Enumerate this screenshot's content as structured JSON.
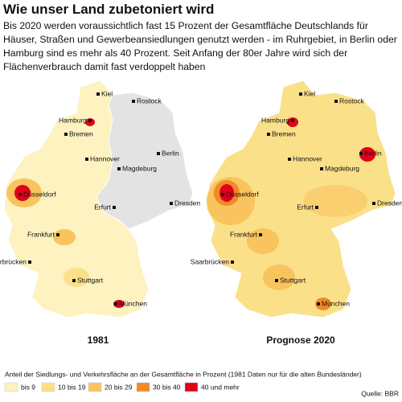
{
  "title": "Wie unser Land zubetoniert wird",
  "intro": "Bis 2020 werden voraussichtlich fast 15 Prozent der Gesamtfläche Deutschlands für Häuser, Straßen und Gewerbeansiedlungen genutzt werden - im Ruhrgebiet, in Berlin oder Hamburg sind es mehr als 40 Prozent. Seit Anfang der 80er Jahre wird sich der Flächenverbrauch damit fast verdoppelt haben",
  "maps": [
    {
      "caption": "1981",
      "cities": [
        "Kiel",
        "Rostock",
        "Hamburg",
        "Bremen",
        "Hannover",
        "Berlin",
        "Magdeburg",
        "Düsseldorf",
        "Erfurt",
        "Dresden",
        "Frankfurt",
        "Saarbrücken",
        "Stuttgart",
        "München"
      ]
    },
    {
      "caption": "Prognose 2020",
      "cities": [
        "Kiel",
        "Rostock",
        "Hamburg",
        "Bremen",
        "Hannover",
        "Berlin",
        "Magdeburg",
        "Düsseldorf",
        "Erfurt",
        "Dresden",
        "Frankfurt",
        "Saarbrücken",
        "Stuttgart",
        "München"
      ]
    }
  ],
  "legend": {
    "title": "Anteil der Siedlungs- und Verkehrsfläche an der Gesamtfläche in Prozent (1981 Daten nur für die alten Bundesländer)",
    "items": [
      {
        "label": "bis 9",
        "color": "#fdf2c0"
      },
      {
        "label": "10 bis 19",
        "color": "#fbe08a"
      },
      {
        "label": "20 bis 29",
        "color": "#f9c35e"
      },
      {
        "label": "30 bis 40",
        "color": "#f08a2a"
      },
      {
        "label": "40 und mehr",
        "color": "#e2001a"
      }
    ]
  },
  "source": "Quelle: BBR"
}
